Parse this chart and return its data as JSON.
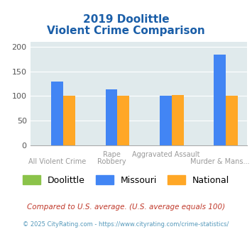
{
  "title_line1": "2019 Doolittle",
  "title_line2": "Violent Crime Comparison",
  "cat_labels_top": [
    "",
    "Rape",
    "Aggravated Assault",
    ""
  ],
  "cat_labels_bot": [
    "All Violent Crime",
    "Robbery",
    "",
    "Murder & Mans..."
  ],
  "series": {
    "Doolittle": [
      0,
      0,
      0,
      0
    ],
    "Missouri": [
      130,
      113,
      100,
      185
    ],
    "National": [
      101,
      101,
      102,
      101
    ]
  },
  "colors": {
    "Doolittle": "#8bc34a",
    "Missouri": "#4285f4",
    "National": "#ffa726"
  },
  "ylim": [
    0,
    210
  ],
  "yticks": [
    0,
    50,
    100,
    150,
    200
  ],
  "background_color": "#e0eaec",
  "title_color": "#1a5ea8",
  "footnote1": "Compared to U.S. average. (U.S. average equals 100)",
  "footnote2": "© 2025 CityRating.com - https://www.cityrating.com/crime-statistics/",
  "footnote1_color": "#c0392b",
  "footnote2_color": "#5599bb"
}
